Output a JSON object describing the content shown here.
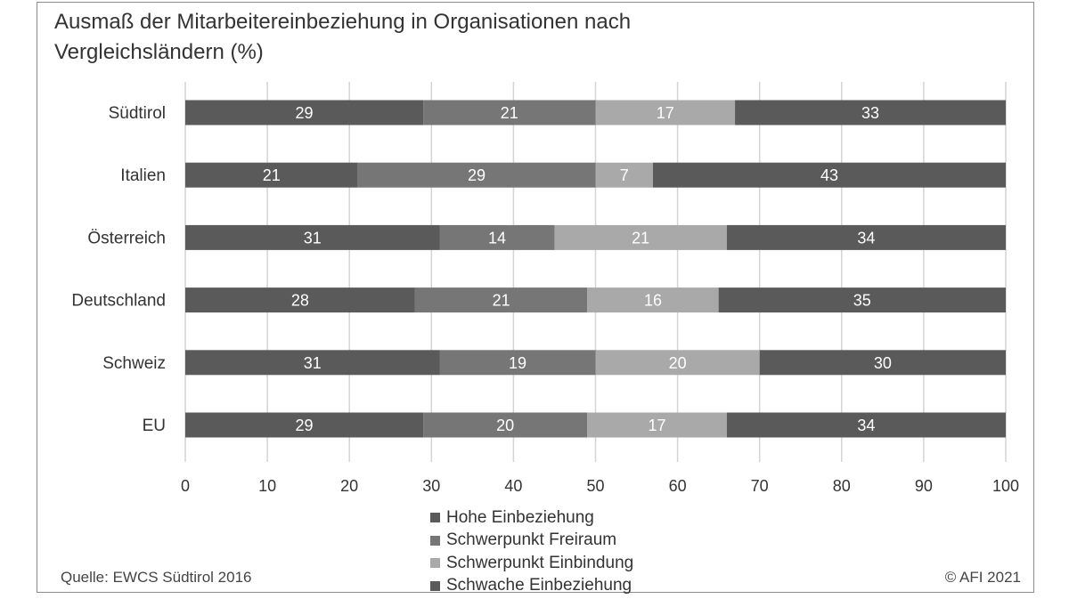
{
  "title": "Ausmaß der Mitarbeitereinbeziehung in Organisationen nach Vergleichsländern (%)",
  "source": "Quelle: EWCS Südtirol 2016",
  "copyright": "© AFI 2021",
  "chart_data": {
    "type": "bar",
    "orientation": "horizontal",
    "stacked": true,
    "title": "Ausmaß der Mitarbeitereinbeziehung in Organisationen nach Vergleichsländern (%)",
    "categories": [
      "Südtirol",
      "Italien",
      "Österreich",
      "Deutschland",
      "Schweiz",
      "EU"
    ],
    "series": [
      {
        "name": "Hohe Einbeziehung",
        "color": "#5a5a5a",
        "values": [
          29,
          21,
          31,
          28,
          31,
          29
        ]
      },
      {
        "name": "Schwerpunkt Freiraum",
        "color": "#767676",
        "values": [
          21,
          29,
          14,
          21,
          19,
          20
        ]
      },
      {
        "name": "Schwerpunkt Einbindung",
        "color": "#a9a9a9",
        "values": [
          17,
          7,
          21,
          16,
          20,
          17
        ]
      },
      {
        "name": "Schwache Einbeziehung",
        "color": "#5a5a5a",
        "values": [
          33,
          43,
          34,
          35,
          30,
          34
        ]
      }
    ],
    "xlim": [
      0,
      100
    ],
    "xticks": [
      "0",
      "10",
      "20",
      "30",
      "40",
      "50",
      "60",
      "70",
      "80",
      "90",
      "100"
    ],
    "grid": true,
    "legend_position": "bottom",
    "data_labels": true
  }
}
